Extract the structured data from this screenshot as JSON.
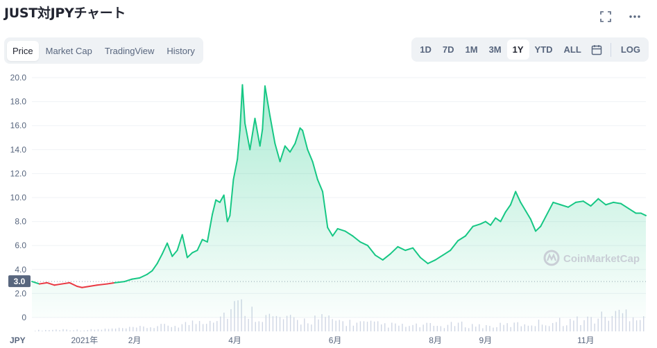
{
  "page": {
    "title": "JUST対JPYチャート"
  },
  "tabs": [
    "Price",
    "Market Cap",
    "TradingView",
    "History"
  ],
  "ranges": [
    "1D",
    "7D",
    "1M",
    "3M",
    "1Y",
    "YTD",
    "ALL"
  ],
  "log_label": "LOG",
  "icons": {
    "fullscreen": "fullscreen-icon",
    "more": "more-icon",
    "calendar": "calendar-icon"
  },
  "watermark": "CoinMarketCap",
  "colors": {
    "up": "#16c784",
    "down": "#ea3943",
    "grid": "#eff2f5",
    "axis_text": "#58667e"
  },
  "chart_data": {
    "type": "area",
    "currency_label": "JPY",
    "current_price_label": "3.0",
    "ylim": [
      0,
      20
    ],
    "yticks": [
      "20.0",
      "18.0",
      "16.0",
      "14.0",
      "12.0",
      "10.0",
      "8.0",
      "6.0",
      "4.0",
      "2.0",
      "0"
    ],
    "reference_line": 3.0,
    "xticks": [
      {
        "label": "2021年",
        "x": 1.0
      },
      {
        "label": "2月",
        "x": 2.0
      },
      {
        "label": "4月",
        "x": 4.0
      },
      {
        "label": "6月",
        "x": 6.0
      },
      {
        "label": "8月",
        "x": 8.0
      },
      {
        "label": "9月",
        "x": 9.0
      },
      {
        "label": "11月",
        "x": 11.0
      }
    ],
    "x_range": [
      -0.05,
      12.2
    ],
    "series": [
      {
        "x": [
          -0.05,
          0.1,
          0.25,
          0.4,
          0.55,
          0.7,
          0.85,
          0.95,
          1.1,
          1.25,
          1.45,
          1.6,
          1.8,
          1.95,
          2.1,
          2.25,
          2.35,
          2.45,
          2.55,
          2.65,
          2.75,
          2.85,
          2.95,
          3.05,
          3.15,
          3.25,
          3.35,
          3.45,
          3.55,
          3.62,
          3.7,
          3.78,
          3.85,
          3.9,
          3.97,
          4.05,
          4.1,
          4.15,
          4.2,
          4.3,
          4.4,
          4.5,
          4.55,
          4.6,
          4.7,
          4.8,
          4.9,
          5.0,
          5.1,
          5.2,
          5.3,
          5.35,
          5.45,
          5.55,
          5.65,
          5.75,
          5.85,
          5.95,
          6.05,
          6.2,
          6.35,
          6.5,
          6.65,
          6.8,
          6.95,
          7.1,
          7.25,
          7.4,
          7.55,
          7.7,
          7.85,
          8.0,
          8.15,
          8.3,
          8.45,
          8.6,
          8.75,
          8.9,
          9.0,
          9.1,
          9.2,
          9.3,
          9.4,
          9.5,
          9.6,
          9.7,
          9.8,
          9.9,
          10.0,
          10.1,
          10.2,
          10.35,
          10.5,
          10.65,
          10.8,
          10.95,
          11.1,
          11.25,
          11.4,
          11.55,
          11.7,
          11.85,
          12.0,
          12.1,
          12.2
        ],
        "y": [
          3.0,
          2.8,
          2.9,
          2.7,
          2.8,
          2.9,
          2.6,
          2.5,
          2.6,
          2.7,
          2.8,
          2.9,
          3.0,
          3.2,
          3.3,
          3.6,
          3.9,
          4.5,
          5.3,
          6.2,
          5.1,
          5.6,
          6.9,
          5.0,
          5.4,
          5.6,
          6.5,
          6.3,
          8.6,
          9.8,
          9.6,
          10.2,
          8.0,
          8.5,
          11.5,
          13.2,
          15.6,
          19.4,
          16.2,
          14.0,
          16.6,
          14.3,
          15.7,
          19.3,
          16.8,
          14.5,
          13.0,
          14.3,
          13.8,
          14.5,
          15.8,
          15.6,
          14.0,
          13.0,
          11.5,
          10.5,
          7.5,
          6.8,
          7.4,
          7.2,
          6.8,
          6.3,
          6.0,
          5.2,
          4.8,
          5.3,
          5.9,
          5.6,
          5.8,
          5.0,
          4.5,
          4.8,
          5.2,
          5.6,
          6.4,
          6.8,
          7.6,
          7.8,
          8.0,
          7.7,
          8.3,
          8.0,
          8.8,
          9.4,
          10.5,
          9.6,
          8.9,
          8.2,
          7.2,
          7.6,
          8.4,
          9.6,
          9.4,
          9.2,
          9.6,
          9.7,
          9.3,
          9.9,
          9.4,
          9.6,
          9.5,
          9.1,
          8.7,
          8.7,
          8.5
        ]
      }
    ],
    "volume": [
      0.1,
      0.15,
      0.2,
      0.12,
      0.18,
      0.25,
      0.3,
      0.4,
      0.5,
      0.6,
      0.8,
      1.2,
      1.6,
      2.6,
      1.8,
      1.4,
      1.2,
      1.0,
      1.3,
      1.1,
      0.9,
      0.8,
      0.7,
      0.6,
      0.5,
      0.6,
      0.5,
      0.7,
      0.6,
      0.5,
      0.6,
      0.7,
      0.8,
      0.9,
      1.0,
      1.1,
      1.3,
      1.6,
      1.9,
      1.5
    ]
  }
}
